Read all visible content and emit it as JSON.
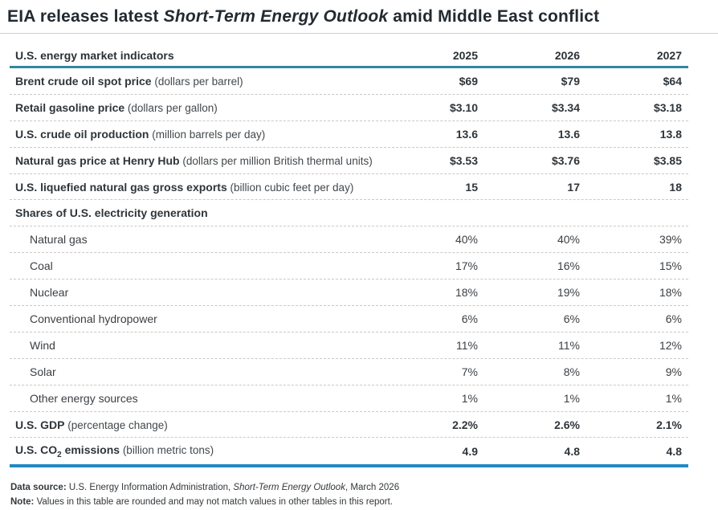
{
  "title": {
    "prefix": "EIA releases latest ",
    "italic": "Short-Term Energy Outlook",
    "suffix": " amid Middle East conflict"
  },
  "table": {
    "header": {
      "label": "U.S. energy market indicators",
      "years": [
        "2025",
        "2026",
        "2027"
      ]
    },
    "rows": [
      {
        "type": "primary",
        "label": "Brent crude oil spot price",
        "unit": "(dollars per barrel)",
        "values": [
          "$69",
          "$79",
          "$64"
        ]
      },
      {
        "type": "primary",
        "label": "Retail gasoline price",
        "unit": "(dollars per gallon)",
        "values": [
          "$3.10",
          "$3.34",
          "$3.18"
        ]
      },
      {
        "type": "primary",
        "label": "U.S. crude oil production",
        "unit": "(million barrels per day)",
        "values": [
          "13.6",
          "13.6",
          "13.8"
        ]
      },
      {
        "type": "primary",
        "label": "Natural gas price at Henry Hub",
        "unit": "(dollars per million British thermal units)",
        "values": [
          "$3.53",
          "$3.76",
          "$3.85"
        ]
      },
      {
        "type": "primary",
        "label": "U.S. liquefied natural gas gross exports",
        "unit": "(billion cubic feet per day)",
        "values": [
          "15",
          "17",
          "18"
        ]
      },
      {
        "type": "section",
        "label": "Shares of U.S. electricity generation",
        "values": [
          "",
          "",
          ""
        ]
      },
      {
        "type": "sub",
        "label": "Natural gas",
        "values": [
          "40%",
          "40%",
          "39%"
        ]
      },
      {
        "type": "sub",
        "label": "Coal",
        "values": [
          "17%",
          "16%",
          "15%"
        ]
      },
      {
        "type": "sub",
        "label": "Nuclear",
        "values": [
          "18%",
          "19%",
          "18%"
        ]
      },
      {
        "type": "sub",
        "label": "Conventional hydropower",
        "values": [
          "6%",
          "6%",
          "6%"
        ]
      },
      {
        "type": "sub",
        "label": "Wind",
        "values": [
          "11%",
          "11%",
          "12%"
        ]
      },
      {
        "type": "sub",
        "label": "Solar",
        "values": [
          "7%",
          "8%",
          "9%"
        ]
      },
      {
        "type": "sub",
        "label": "Other energy sources",
        "values": [
          "1%",
          "1%",
          "1%"
        ]
      },
      {
        "type": "primary",
        "label": "U.S. GDP",
        "unit": "(percentage change)",
        "values": [
          "2.2%",
          "2.6%",
          "2.1%"
        ]
      },
      {
        "type": "primary",
        "label": "U.S. CO",
        "label_sub": "2",
        "label_rest": " emissions",
        "unit": "(billion metric tons)",
        "values": [
          "4.9",
          "4.8",
          "4.8"
        ]
      }
    ]
  },
  "footer": {
    "source_label": "Data source:",
    "source_pre": " U.S. Energy Information Administration, ",
    "source_italic": "Short-Term Energy Outlook",
    "source_post": ", March 2026",
    "note_label": "Note:",
    "note_text": " Values in this table are rounded and may not match values in other tables in this report."
  },
  "colors": {
    "header_rule": "#35869f",
    "bottom_rule": "#2289c2",
    "title_text": "#222a31",
    "body_text": "#33383c",
    "row_divider": "#c9c9c9",
    "title_divider": "#cfcfcf"
  },
  "chart_data": {
    "type": "table",
    "title": "EIA releases latest Short-Term Energy Outlook amid Middle East conflict",
    "columns": [
      "U.S. energy market indicators",
      "2025",
      "2026",
      "2027"
    ],
    "rows": [
      [
        "Brent crude oil spot price (dollars per barrel)",
        "$69",
        "$79",
        "$64"
      ],
      [
        "Retail gasoline price (dollars per gallon)",
        "$3.10",
        "$3.34",
        "$3.18"
      ],
      [
        "U.S. crude oil production (million barrels per day)",
        "13.6",
        "13.6",
        "13.8"
      ],
      [
        "Natural gas price at Henry Hub (dollars per million British thermal units)",
        "$3.53",
        "$3.76",
        "$3.85"
      ],
      [
        "U.S. liquefied natural gas gross exports (billion cubic feet per day)",
        "15",
        "17",
        "18"
      ],
      [
        "Shares of U.S. electricity generation",
        "",
        "",
        ""
      ],
      [
        "Natural gas",
        "40%",
        "40%",
        "39%"
      ],
      [
        "Coal",
        "17%",
        "16%",
        "15%"
      ],
      [
        "Nuclear",
        "18%",
        "19%",
        "18%"
      ],
      [
        "Conventional hydropower",
        "6%",
        "6%",
        "6%"
      ],
      [
        "Wind",
        "11%",
        "11%",
        "12%"
      ],
      [
        "Solar",
        "7%",
        "8%",
        "9%"
      ],
      [
        "Other energy sources",
        "1%",
        "1%",
        "1%"
      ],
      [
        "U.S. GDP (percentage change)",
        "2.2%",
        "2.6%",
        "2.1%"
      ],
      [
        "U.S. CO2 emissions (billion metric tons)",
        "4.9",
        "4.8",
        "4.8"
      ]
    ],
    "source": "U.S. Energy Information Administration, Short-Term Energy Outlook, March 2026",
    "note": "Values in this table are rounded and may not match values in other tables in this report."
  }
}
